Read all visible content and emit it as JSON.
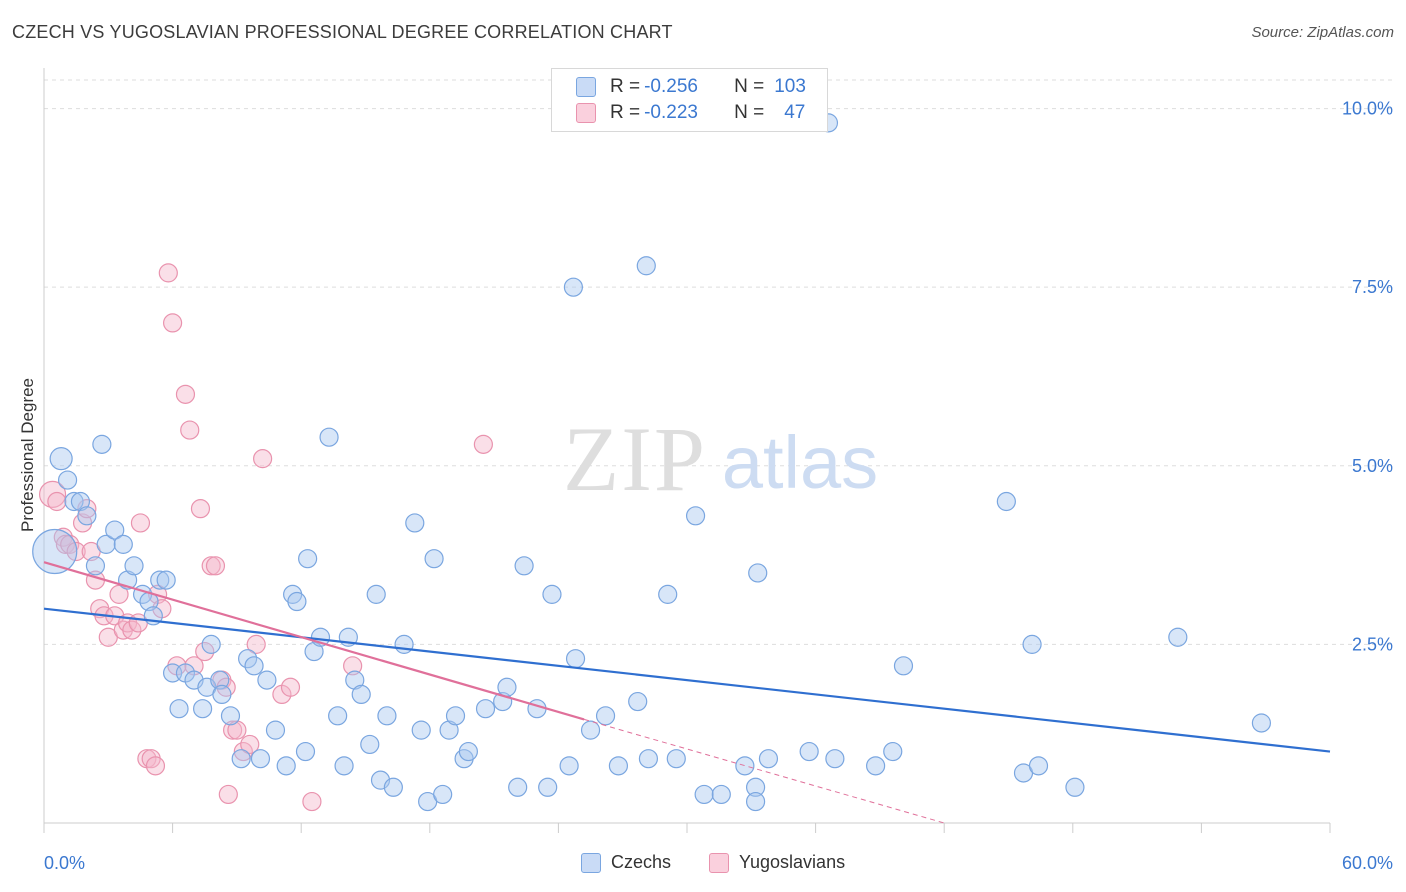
{
  "header": {
    "title": "CZECH VS YUGOSLAVIAN PROFESSIONAL DEGREE CORRELATION CHART",
    "source": "Source: ZipAtlas.com"
  },
  "watermark": {
    "zip": "ZIP",
    "atlas": "atlas"
  },
  "legend": {
    "rows": [
      {
        "r_label": "R = ",
        "r_value": "-0.256",
        "n_label": "N = ",
        "n_value": "103",
        "color": "#a9c7f0"
      },
      {
        "r_label": "R = ",
        "r_value": "-0.223",
        "n_label": "N = ",
        "n_value": "47",
        "color": "#f5b8cb"
      }
    ]
  },
  "colors": {
    "czech_fill": "#a9c7f0",
    "czech_stroke": "#7aa6e0",
    "czech_line": "#2f6fd0",
    "yugo_fill": "#f5b8cb",
    "yugo_stroke": "#e993ae",
    "yugo_line": "#e0709a",
    "axis_label": "#3b78d0",
    "grid": "#dddddd"
  },
  "chart_data": {
    "type": "scatter",
    "title": "CZECH VS YUGOSLAVIAN PROFESSIONAL DEGREE CORRELATION CHART",
    "xlabel": "",
    "ylabel": "Professional Degree",
    "xlim": [
      0,
      60
    ],
    "ylim": [
      0,
      10.4
    ],
    "x_tick_labels": [
      "0.0%",
      "60.0%"
    ],
    "y_ticks": [
      2.5,
      5.0,
      7.5,
      10.0
    ],
    "y_tick_labels": [
      "2.5%",
      "5.0%",
      "7.5%",
      "10.0%"
    ],
    "grid": "horizontal dashed",
    "legend_position": "bottom-center",
    "series": [
      {
        "name": "Czechs",
        "regression": {
          "x": [
            0,
            60
          ],
          "y": [
            3.0,
            1.0
          ]
        },
        "points": [
          [
            0.5,
            3.8,
            22
          ],
          [
            0.8,
            5.1,
            11
          ],
          [
            1.1,
            4.8,
            9
          ],
          [
            1.4,
            4.5,
            9
          ],
          [
            1.7,
            4.5,
            9
          ],
          [
            2.0,
            4.3,
            9
          ],
          [
            2.7,
            5.3,
            9
          ],
          [
            2.4,
            3.6,
            9
          ],
          [
            2.9,
            3.9,
            9
          ],
          [
            3.3,
            4.1,
            9
          ],
          [
            3.7,
            3.9,
            9
          ],
          [
            3.9,
            3.4,
            9
          ],
          [
            4.2,
            3.6,
            9
          ],
          [
            4.6,
            3.2,
            9
          ],
          [
            4.9,
            3.1,
            9
          ],
          [
            5.1,
            2.9,
            9
          ],
          [
            5.4,
            3.4,
            9
          ],
          [
            5.7,
            3.4,
            9
          ],
          [
            6.0,
            2.1,
            9
          ],
          [
            6.3,
            1.6,
            9
          ],
          [
            6.6,
            2.1,
            9
          ],
          [
            7.0,
            2.0,
            9
          ],
          [
            7.4,
            1.6,
            9
          ],
          [
            7.6,
            1.9,
            9
          ],
          [
            7.8,
            2.5,
            9
          ],
          [
            8.2,
            2.0,
            9
          ],
          [
            8.3,
            1.8,
            9
          ],
          [
            8.7,
            1.5,
            9
          ],
          [
            9.2,
            0.9,
            9
          ],
          [
            9.5,
            2.3,
            9
          ],
          [
            9.8,
            2.2,
            9
          ],
          [
            10.1,
            0.9,
            9
          ],
          [
            10.4,
            2.0,
            9
          ],
          [
            10.8,
            1.3,
            9
          ],
          [
            11.3,
            0.8,
            9
          ],
          [
            11.6,
            3.2,
            9
          ],
          [
            11.8,
            3.1,
            9
          ],
          [
            12.2,
            1.0,
            9
          ],
          [
            12.3,
            3.7,
            9
          ],
          [
            12.6,
            2.4,
            9
          ],
          [
            12.9,
            2.6,
            9
          ],
          [
            13.3,
            5.4,
            9
          ],
          [
            13.7,
            1.5,
            9
          ],
          [
            14.0,
            0.8,
            9
          ],
          [
            14.2,
            2.6,
            9
          ],
          [
            14.5,
            2.0,
            9
          ],
          [
            14.8,
            1.8,
            9
          ],
          [
            15.2,
            1.1,
            9
          ],
          [
            15.5,
            3.2,
            9
          ],
          [
            15.7,
            0.6,
            9
          ],
          [
            16.0,
            1.5,
            9
          ],
          [
            16.3,
            0.5,
            9
          ],
          [
            16.8,
            2.5,
            9
          ],
          [
            17.3,
            4.2,
            9
          ],
          [
            17.6,
            1.3,
            9
          ],
          [
            17.9,
            0.3,
            9
          ],
          [
            18.2,
            3.7,
            9
          ],
          [
            18.6,
            0.4,
            9
          ],
          [
            18.9,
            1.3,
            9
          ],
          [
            19.2,
            1.5,
            9
          ],
          [
            19.6,
            0.9,
            9
          ],
          [
            19.8,
            1.0,
            9
          ],
          [
            20.6,
            1.6,
            9
          ],
          [
            21.4,
            1.7,
            9
          ],
          [
            21.6,
            1.9,
            9
          ],
          [
            22.1,
            0.5,
            9
          ],
          [
            22.4,
            3.6,
            9
          ],
          [
            23.0,
            1.6,
            9
          ],
          [
            23.5,
            0.5,
            9
          ],
          [
            23.7,
            3.2,
            9
          ],
          [
            24.5,
            0.8,
            9
          ],
          [
            24.7,
            7.5,
            9
          ],
          [
            24.8,
            2.3,
            9
          ],
          [
            25.5,
            1.3,
            9
          ],
          [
            26.2,
            1.5,
            9
          ],
          [
            26.8,
            0.8,
            9
          ],
          [
            27.7,
            1.7,
            9
          ],
          [
            28.1,
            7.8,
            9
          ],
          [
            28.2,
            0.9,
            9
          ],
          [
            29.1,
            3.2,
            9
          ],
          [
            29.5,
            0.9,
            9
          ],
          [
            30.4,
            4.3,
            9
          ],
          [
            30.8,
            0.4,
            9
          ],
          [
            31.6,
            0.4,
            9
          ],
          [
            32.7,
            0.8,
            9
          ],
          [
            33.2,
            0.5,
            9
          ],
          [
            33.2,
            0.3,
            9
          ],
          [
            33.3,
            3.5,
            9
          ],
          [
            33.8,
            0.9,
            9
          ],
          [
            35.7,
            1.0,
            9
          ],
          [
            36.9,
            0.9,
            9
          ],
          [
            36.6,
            9.8,
            9
          ],
          [
            38.8,
            0.8,
            9
          ],
          [
            39.6,
            1.0,
            9
          ],
          [
            40.1,
            2.2,
            9
          ],
          [
            44.9,
            4.5,
            9
          ],
          [
            45.7,
            0.7,
            9
          ],
          [
            46.1,
            2.5,
            9
          ],
          [
            46.4,
            0.8,
            9
          ],
          [
            48.1,
            0.5,
            9
          ],
          [
            52.9,
            2.6,
            9
          ],
          [
            56.8,
            1.4,
            9
          ]
        ]
      },
      {
        "name": "Yugoslavians",
        "regression": {
          "x": [
            0,
            25.2
          ],
          "y": [
            3.65,
            1.45
          ]
        },
        "regression_extension": {
          "x": [
            25.2,
            42
          ],
          "y": [
            1.45,
            0.0
          ]
        },
        "points": [
          [
            0.4,
            4.6,
            13
          ],
          [
            0.6,
            4.5,
            9
          ],
          [
            0.9,
            4.0,
            9
          ],
          [
            1.0,
            3.9,
            9
          ],
          [
            1.2,
            3.9,
            9
          ],
          [
            1.5,
            3.8,
            9
          ],
          [
            1.8,
            4.2,
            9
          ],
          [
            2.0,
            4.4,
            9
          ],
          [
            2.2,
            3.8,
            9
          ],
          [
            2.4,
            3.4,
            9
          ],
          [
            2.6,
            3.0,
            9
          ],
          [
            2.8,
            2.9,
            9
          ],
          [
            3.0,
            2.6,
            9
          ],
          [
            3.3,
            2.9,
            9
          ],
          [
            3.5,
            3.2,
            9
          ],
          [
            3.7,
            2.7,
            9
          ],
          [
            3.9,
            2.8,
            9
          ],
          [
            4.1,
            2.7,
            9
          ],
          [
            4.4,
            2.8,
            9
          ],
          [
            4.5,
            4.2,
            9
          ],
          [
            4.8,
            0.9,
            9
          ],
          [
            5.0,
            0.9,
            9
          ],
          [
            5.3,
            3.2,
            9
          ],
          [
            5.5,
            3.0,
            9
          ],
          [
            5.8,
            7.7,
            9
          ],
          [
            6.0,
            7.0,
            9
          ],
          [
            6.2,
            2.2,
            9
          ],
          [
            6.6,
            6.0,
            9
          ],
          [
            6.8,
            5.5,
            9
          ],
          [
            7.0,
            2.2,
            9
          ],
          [
            7.3,
            4.4,
            9
          ],
          [
            7.5,
            2.4,
            9
          ],
          [
            7.8,
            3.6,
            9
          ],
          [
            8.0,
            3.6,
            9
          ],
          [
            8.3,
            2.0,
            9
          ],
          [
            8.5,
            1.9,
            9
          ],
          [
            8.8,
            1.3,
            9
          ],
          [
            9.0,
            1.3,
            9
          ],
          [
            9.3,
            1.0,
            9
          ],
          [
            9.6,
            1.1,
            9
          ],
          [
            9.9,
            2.5,
            9
          ],
          [
            10.2,
            5.1,
            9
          ],
          [
            11.1,
            1.8,
            9
          ],
          [
            11.5,
            1.9,
            9
          ],
          [
            12.5,
            0.3,
            9
          ],
          [
            14.4,
            2.2,
            9
          ],
          [
            20.5,
            5.3,
            9
          ],
          [
            5.2,
            0.8,
            9
          ],
          [
            8.6,
            0.4,
            9
          ]
        ]
      }
    ]
  }
}
